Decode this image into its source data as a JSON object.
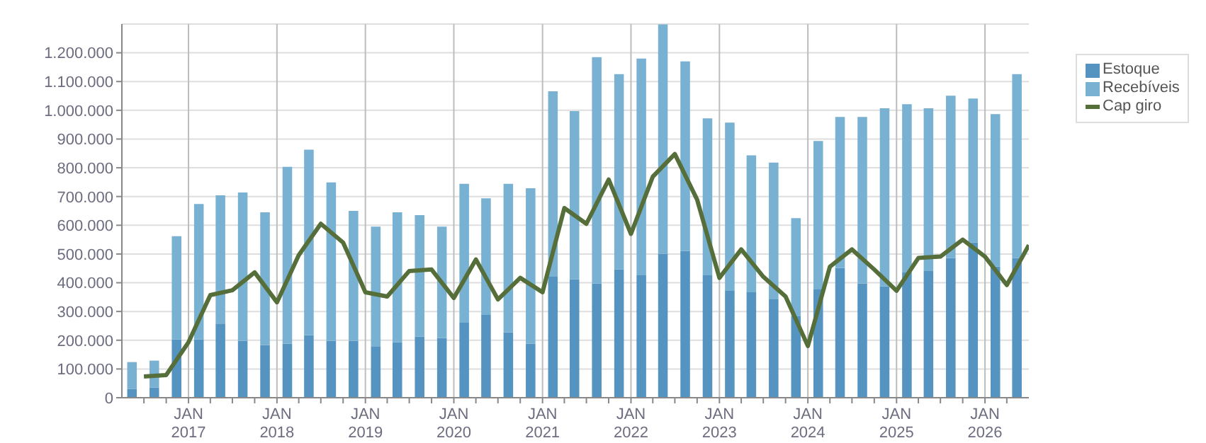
{
  "chart_data": {
    "type": "bar",
    "stacked": true,
    "grid": true,
    "legend": "top right",
    "x": [
      "2016-05-15",
      "2016-08-15",
      "2016-11-15",
      "2017-02-15",
      "2017-05-15",
      "2017-08-15",
      "2017-11-15",
      "2018-02-15",
      "2018-05-15",
      "2018-08-15",
      "2018-11-15",
      "2019-02-15",
      "2019-05-15",
      "2019-08-15",
      "2019-11-15",
      "2020-02-15",
      "2020-05-15",
      "2020-08-15",
      "2020-11-15",
      "2021-02-15",
      "2021-05-15",
      "2021-08-15",
      "2021-11-15",
      "2022-02-15",
      "2022-05-15",
      "2022-08-15",
      "2022-11-15",
      "2023-02-15",
      "2023-05-15",
      "2023-08-15",
      "2023-11-15",
      "2024-02-15",
      "2024-05-15",
      "2024-08-15",
      "2024-11-15",
      "2025-02-15",
      "2025-05-15",
      "2025-08-15",
      "2025-11-15",
      "2026-02-15",
      "2026-05-15"
    ],
    "series": [
      {
        "name": "Estoque",
        "color": "#5593c0",
        "values": [
          30000,
          35000,
          203000,
          203000,
          258000,
          198000,
          183000,
          188000,
          218000,
          198000,
          198000,
          179000,
          193000,
          213000,
          208000,
          263000,
          288000,
          228000,
          188000,
          421000,
          412000,
          397000,
          446000,
          426000,
          501000,
          511000,
          426000,
          372000,
          367000,
          342000,
          283000,
          377000,
          451000,
          397000,
          388000,
          436000,
          441000,
          486000,
          540000,
          456000,
          486000
        ]
      },
      {
        "name": "Recebíveis",
        "color": "#79b1d3",
        "values": [
          94000,
          94000,
          359000,
          471000,
          446000,
          516000,
          462000,
          615000,
          645000,
          551000,
          452000,
          416000,
          452000,
          422000,
          387000,
          481000,
          406000,
          516000,
          541000,
          645000,
          585000,
          788000,
          680000,
          754000,
          798000,
          659000,
          546000,
          585000,
          476000,
          476000,
          342000,
          516000,
          526000,
          580000,
          619000,
          585000,
          566000,
          565000,
          501000,
          531000,
          640000
        ]
      },
      {
        "name": "Cap giro",
        "type": "line",
        "color": "#566f3a",
        "x": [
          "2016-07",
          "2016-10",
          "2017-01",
          "2017-04",
          "2017-07",
          "2017-10",
          "2018-01",
          "2018-04",
          "2018-07",
          "2018-10",
          "2019-01",
          "2019-04",
          "2019-07",
          "2019-10",
          "2020-01",
          "2020-04",
          "2020-07",
          "2020-10",
          "2021-01",
          "2021-04",
          "2021-07",
          "2021-10",
          "2022-01",
          "2022-04",
          "2022-07",
          "2022-10",
          "2023-01",
          "2023-04",
          "2023-07",
          "2023-10",
          "2024-01",
          "2024-04",
          "2024-07",
          "2024-10",
          "2025-01",
          "2025-04",
          "2025-07",
          "2025-10",
          "2026-01",
          "2026-04",
          "2026-07"
        ],
        "values": [
          74000,
          79000,
          193000,
          357000,
          374000,
          436000,
          332000,
          496000,
          605000,
          540000,
          367000,
          352000,
          441000,
          446000,
          347000,
          481000,
          342000,
          417000,
          367000,
          660000,
          605000,
          759000,
          570000,
          769000,
          848000,
          689000,
          417000,
          516000,
          421000,
          352000,
          180000,
          456000,
          516000,
          446000,
          372000,
          486000,
          491000,
          550000,
          491000,
          392000,
          531000
        ]
      }
    ],
    "ylim": [
      0,
      1300000
    ],
    "yticks": [
      0,
      {
        "value": 100000,
        "label": "100.000"
      },
      {
        "value": 200000,
        "label": "200.000"
      },
      {
        "value": 300000,
        "label": "300.000"
      },
      {
        "value": 400000,
        "label": "400.000"
      },
      {
        "value": 500000,
        "label": "500.000"
      },
      {
        "value": 600000,
        "label": "600.000"
      },
      {
        "value": 700000,
        "label": "700.000"
      },
      {
        "value": 800000,
        "label": "800.000"
      },
      {
        "value": 900000,
        "label": "900.000"
      },
      {
        "value": 1000000,
        "label": "1.000.000"
      },
      {
        "value": 1100000,
        "label": "1.100.000"
      },
      {
        "value": 1200000,
        "label": "1.200.000"
      }
    ],
    "xlim": [
      "2016-04",
      "2026-07"
    ],
    "xticks": [
      {
        "value": "2016-07",
        "label": null
      },
      {
        "value": "2016-10",
        "label": null
      },
      {
        "value": "2017-01",
        "label": "JAN 2017"
      },
      {
        "value": "2017-04",
        "label": null
      },
      {
        "value": "2017-07",
        "label": null
      },
      {
        "value": "2017-10",
        "label": null
      },
      {
        "value": "2018-01",
        "label": "JAN 2018"
      },
      {
        "value": "2018-04",
        "label": null
      },
      {
        "value": "2018-07",
        "label": null
      },
      {
        "value": "2018-10",
        "label": null
      },
      {
        "value": "2019-01",
        "label": "JAN 2019"
      },
      {
        "value": "2019-04",
        "label": null
      },
      {
        "value": "2019-07",
        "label": null
      },
      {
        "value": "2019-10",
        "label": null
      },
      {
        "value": "2020-01",
        "label": "JAN 2020"
      },
      {
        "value": "2020-04",
        "label": null
      },
      {
        "value": "2020-07",
        "label": null
      },
      {
        "value": "2020-10",
        "label": null
      },
      {
        "value": "2021-01",
        "label": "JAN 2021"
      },
      {
        "value": "2021-04",
        "label": null
      },
      {
        "value": "2021-07",
        "label": null
      },
      {
        "value": "2021-10",
        "label": null
      },
      {
        "value": "2022-01",
        "label": "JAN 2022"
      },
      {
        "value": "2022-04",
        "label": null
      },
      {
        "value": "2022-07",
        "label": null
      },
      {
        "value": "2022-10",
        "label": null
      },
      {
        "value": "2023-01",
        "label": "JAN 2023"
      },
      {
        "value": "2023-04",
        "label": null
      },
      {
        "value": "2023-07",
        "label": null
      },
      {
        "value": "2023-10",
        "label": null
      },
      {
        "value": "2024-01",
        "label": "JAN 2024"
      },
      {
        "value": "2024-04",
        "label": null
      },
      {
        "value": "2024-07",
        "label": null
      },
      {
        "value": "2024-10",
        "label": null
      },
      {
        "value": "2025-01",
        "label": "JAN 2025"
      },
      {
        "value": "2025-04",
        "label": null
      },
      {
        "value": "2025-07",
        "label": null
      },
      {
        "value": "2025-10",
        "label": null
      },
      {
        "value": "2026-01",
        "label": "JAN 2026"
      },
      {
        "value": "2026-04",
        "label": null
      }
    ]
  }
}
